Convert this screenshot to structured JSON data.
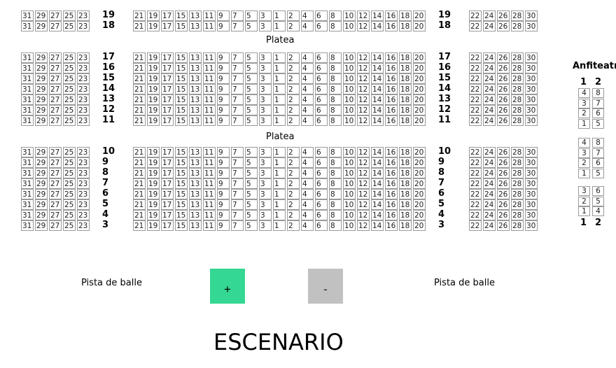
{
  "sections": [
    {
      "rows": [
        "19",
        "18"
      ]
    },
    {
      "label": "Platea",
      "rows": [
        "17",
        "16",
        "15",
        "14",
        "13",
        "12",
        "11"
      ]
    },
    {
      "label": "Platea",
      "rows": [
        "10",
        "9",
        "8",
        "7",
        "6",
        "5",
        "4",
        "3"
      ]
    }
  ],
  "seat_blocks": {
    "left": [
      "31",
      "29",
      "27",
      "25",
      "23"
    ],
    "center": [
      "21",
      "19",
      "17",
      "15",
      "13",
      "11",
      "9",
      "7",
      "5",
      "3",
      "1",
      "2",
      "4",
      "6",
      "8",
      "10",
      "12",
      "14",
      "16",
      "18",
      "20"
    ],
    "right": [
      "22",
      "24",
      "26",
      "28",
      "30"
    ]
  },
  "amphitheater": {
    "title": "Anfiteatro",
    "columns": [
      "1",
      "2"
    ],
    "groups": [
      [
        [
          "4",
          "8"
        ],
        [
          "3",
          "7"
        ],
        [
          "2",
          "6"
        ],
        [
          "1",
          "5"
        ]
      ],
      [
        [
          "4",
          "8"
        ],
        [
          "3",
          "7"
        ],
        [
          "2",
          "6"
        ],
        [
          "1",
          "5"
        ]
      ],
      [
        [
          "3",
          "6"
        ],
        [
          "2",
          "5"
        ],
        [
          "1",
          "4"
        ]
      ]
    ]
  },
  "dance_floor_left": "Pista de balle",
  "dance_floor_right": "Pista de balle",
  "zoom_in_label": "+",
  "zoom_out_label": "-",
  "stage_label": "ESCENARIO",
  "colors": {
    "zoom_in": "#34d793",
    "zoom_out": "#c0c1c0",
    "seat_border": "#9a9a9a"
  }
}
